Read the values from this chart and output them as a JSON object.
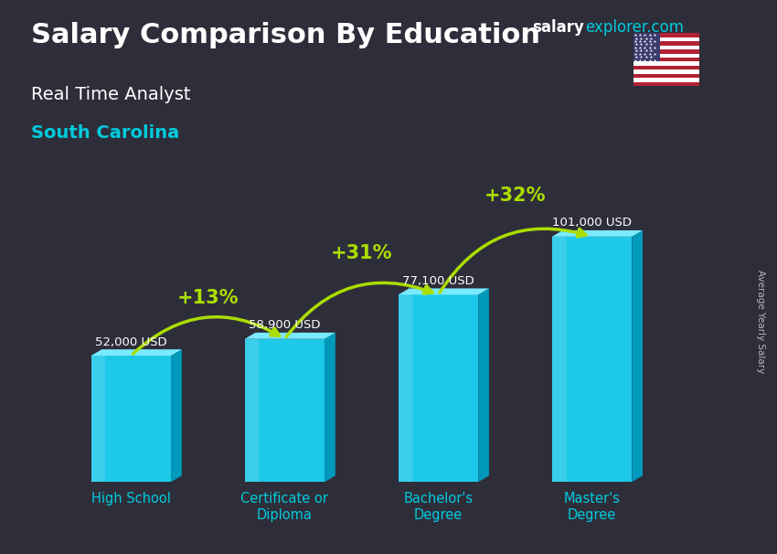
{
  "categories": [
    "High School",
    "Certificate or\nDiploma",
    "Bachelor's\nDegree",
    "Master's\nDegree"
  ],
  "values": [
    52000,
    58900,
    77100,
    101000
  ],
  "labels": [
    "52,000 USD",
    "58,900 USD",
    "77,100 USD",
    "101,000 USD"
  ],
  "pct_changes": [
    "+13%",
    "+31%",
    "+32%"
  ],
  "title": "Salary Comparison By Education",
  "subtitle": "Real Time Analyst",
  "location": "South Carolina",
  "ylabel": "Average Yearly Salary",
  "brand_salary": "salary",
  "brand_explorer": "explorer.com",
  "bg_color": "#2e2e3a",
  "text_color_white": "#ffffff",
  "text_color_cyan": "#00ccdd",
  "arrow_color": "#aadd00",
  "bar_front": "#1ec8e8",
  "bar_top": "#7aeaff",
  "bar_side": "#0099bb",
  "ylim": [
    0,
    130000
  ]
}
